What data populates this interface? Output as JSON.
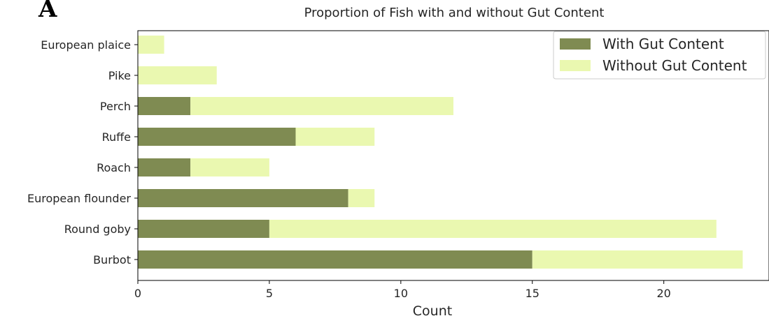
{
  "panel_label": "A",
  "chart_data": {
    "type": "bar",
    "orientation": "horizontal",
    "stacked": true,
    "title": "Proportion of Fish with and without Gut Content",
    "xlabel": "Count",
    "ylabel": "",
    "categories": [
      "Burbot",
      "Round goby",
      "European flounder",
      "Roach",
      "Ruffe",
      "Perch",
      "Pike",
      "European plaice"
    ],
    "series": [
      {
        "name": "With Gut Content",
        "color": "#7f8b52",
        "values": [
          15,
          5,
          8,
          2,
          6,
          2,
          0,
          0
        ]
      },
      {
        "name": "Without Gut Content",
        "color": "#eaf8b0",
        "values": [
          8,
          17,
          1,
          3,
          3,
          10,
          3,
          1
        ]
      }
    ],
    "xlim": [
      0,
      24
    ],
    "xticks": [
      0,
      5,
      10,
      15,
      20
    ],
    "grid": false,
    "legend_position": "top-right"
  }
}
